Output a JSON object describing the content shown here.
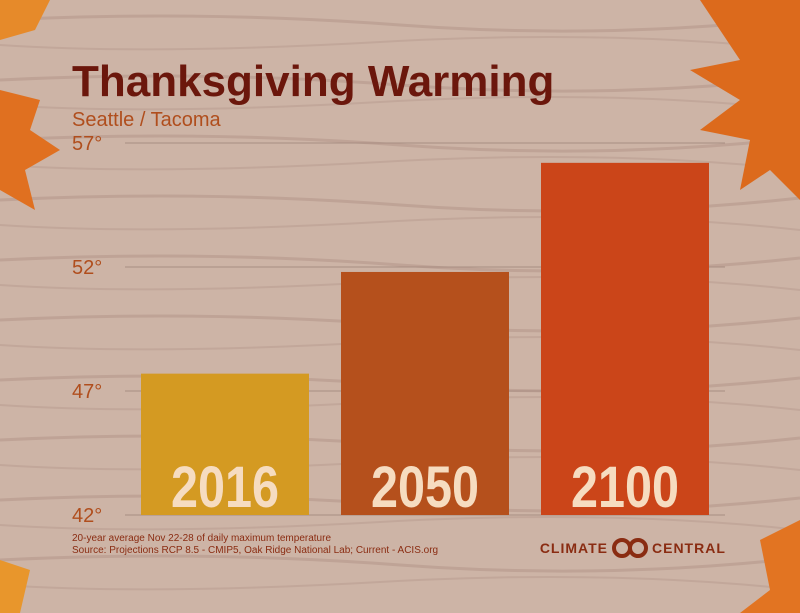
{
  "chart_data": {
    "type": "bar",
    "title": "Thanksgiving Warming",
    "subtitle": "Seattle / Tacoma",
    "categories": [
      "2016",
      "2050",
      "2100"
    ],
    "values": [
      47.7,
      51.8,
      56.2
    ],
    "colors": [
      "#d49a22",
      "#b5501c",
      "#cb4519"
    ],
    "ylim": [
      42,
      57
    ],
    "yticks": [
      {
        "value": 42,
        "label": "42°"
      },
      {
        "value": 47,
        "label": "47°"
      },
      {
        "value": 52,
        "label": "52°"
      },
      {
        "value": 57,
        "label": "57°"
      }
    ],
    "grid": true,
    "notes": [
      "20-year average Nov 22-28 of daily maximum temperature",
      "Source: Projections RCP 8.5 - CMIP5, Oak Ridge National Lab; Current - ACIS.org"
    ],
    "logo": [
      "CLIMATE",
      "CENTRAL"
    ]
  }
}
